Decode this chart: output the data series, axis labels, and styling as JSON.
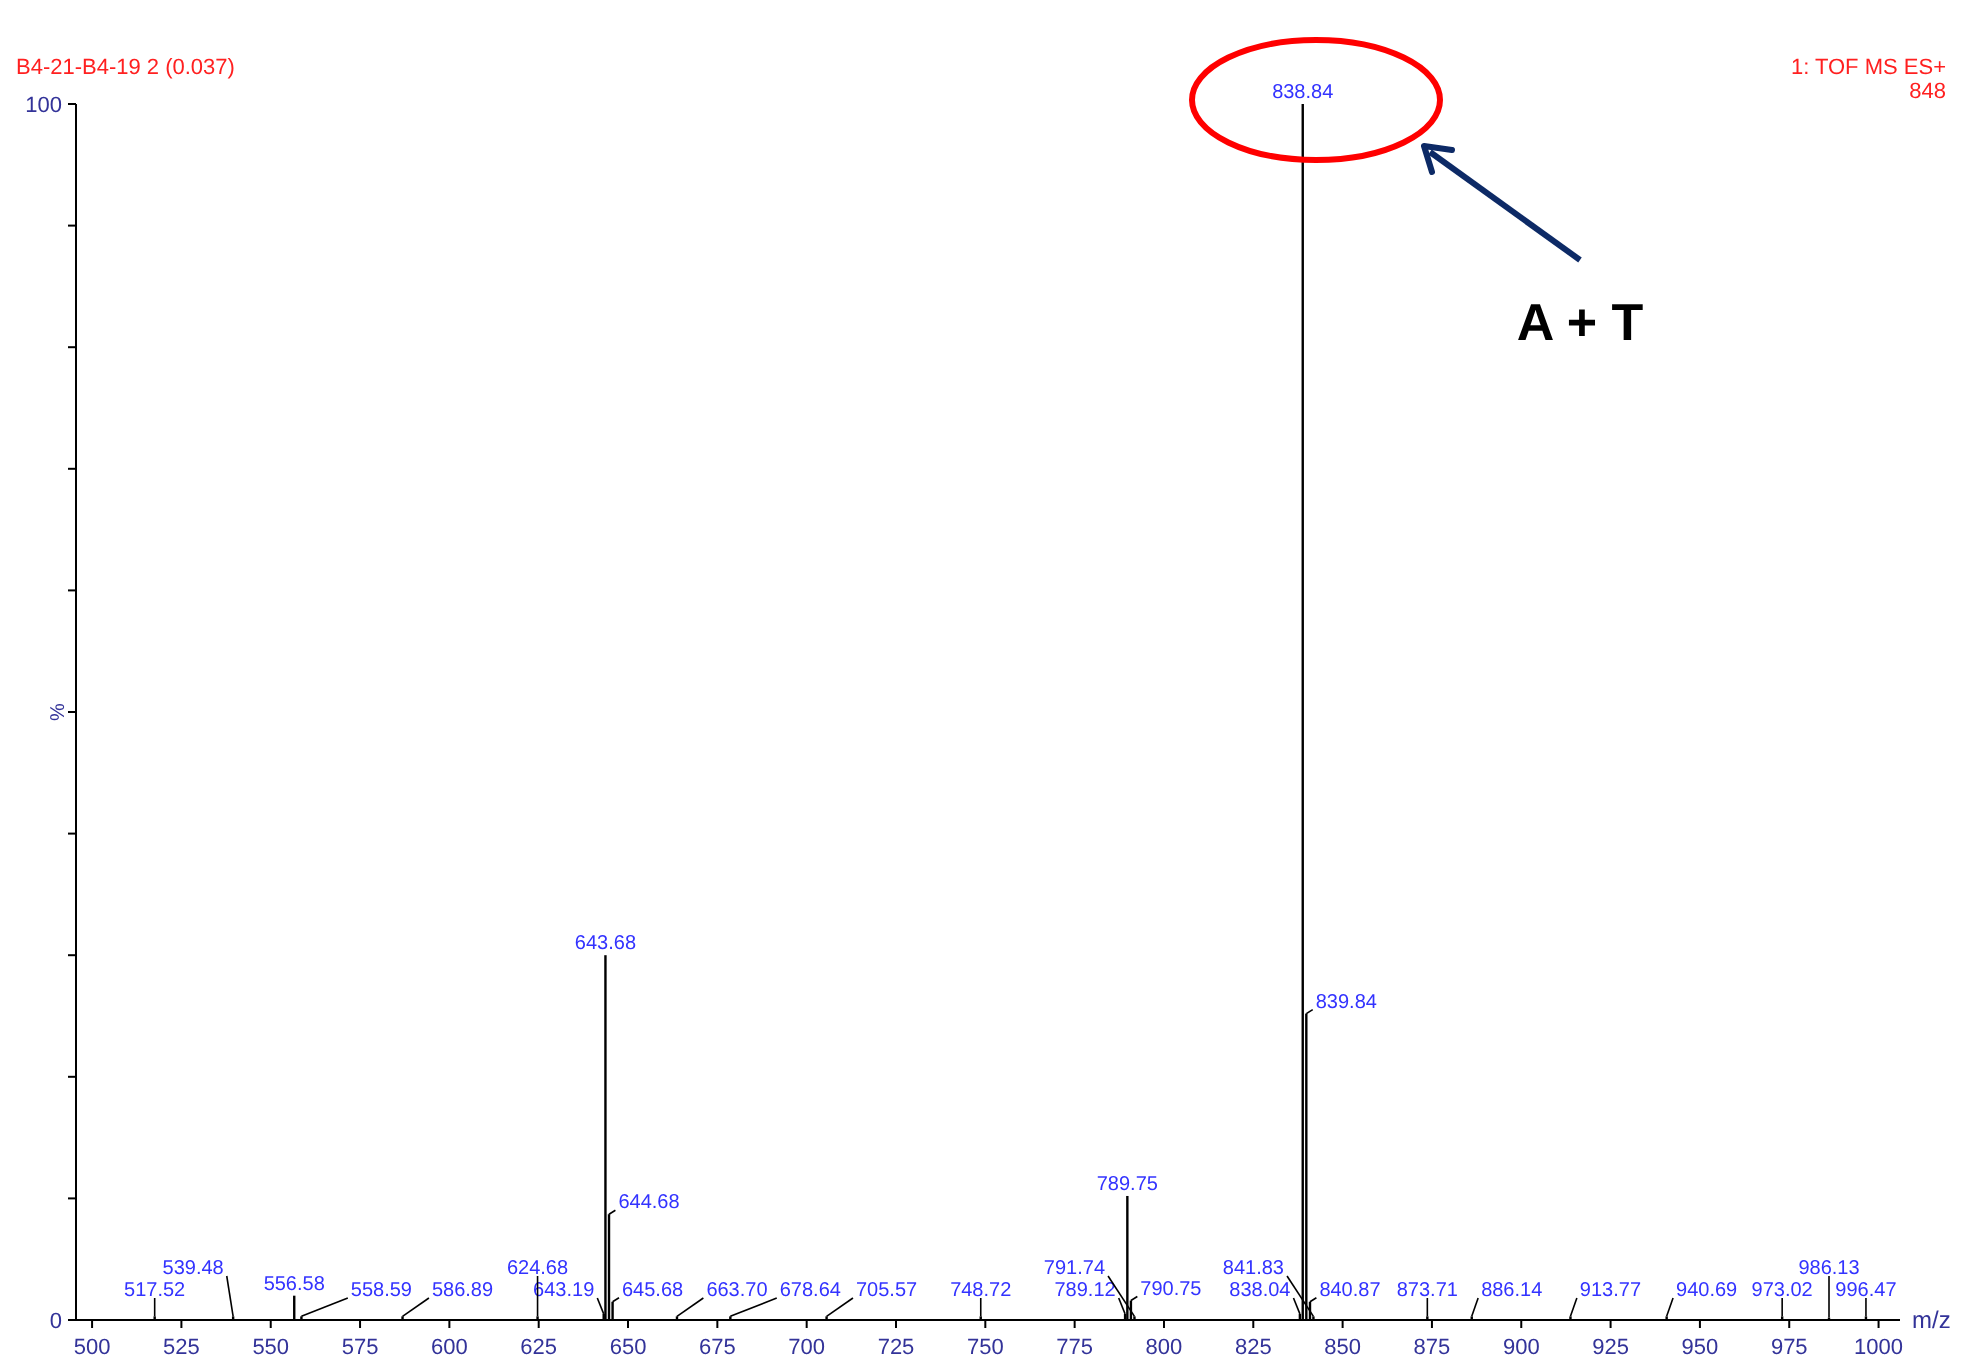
{
  "chart_data": {
    "type": "bar",
    "xlabel": "m/z",
    "ylabel": "%",
    "annotations": [
      "B4-21-B4-19 2 (0.037)",
      "1: TOF MS ES+",
      "848",
      "A + T",
      {
        "text": "517.52",
        "x": 517.52,
        "y": 0.3
      },
      {
        "text": "539.48",
        "x": 539.48,
        "y": 0.3
      },
      {
        "text": "556.58",
        "x": 556.58,
        "y": 2.0
      },
      {
        "text": "558.59",
        "x": 558.59,
        "y": 0.3
      },
      {
        "text": "586.89",
        "x": 586.89,
        "y": 0.3
      },
      {
        "text": "624.68",
        "x": 624.68,
        "y": 0.3
      },
      {
        "text": "643.19",
        "x": 643.19,
        "y": 0.5
      },
      {
        "text": "643.68",
        "x": 643.68,
        "y": 30
      },
      {
        "text": "644.68",
        "x": 644.68,
        "y": 8.7
      },
      {
        "text": "645.68",
        "x": 645.68,
        "y": 1.5
      },
      {
        "text": "663.70",
        "x": 663.7,
        "y": 0.3
      },
      {
        "text": "678.64",
        "x": 678.64,
        "y": 0.3
      },
      {
        "text": "705.57",
        "x": 705.57,
        "y": 0.3
      },
      {
        "text": "748.72",
        "x": 748.72,
        "y": 0.3
      },
      {
        "text": "789.12",
        "x": 789.12,
        "y": 0.5
      },
      {
        "text": "789.75",
        "x": 789.75,
        "y": 10.2
      },
      {
        "text": "790.75",
        "x": 790.75,
        "y": 1.6
      },
      {
        "text": "791.74",
        "x": 791.74,
        "y": 0.3
      },
      {
        "text": "838.04",
        "x": 838.04,
        "y": 0.5
      },
      {
        "text": "838.84",
        "x": 838.84,
        "y": 100
      },
      {
        "text": "839.84",
        "x": 839.84,
        "y": 25.2
      },
      {
        "text": "840.87",
        "x": 840.87,
        "y": 1.5
      },
      {
        "text": "841.83",
        "x": 841.83,
        "y": 0.3
      },
      {
        "text": "873.71",
        "x": 873.71,
        "y": 0.3
      },
      {
        "text": "886.14",
        "x": 886.14,
        "y": 0.3
      },
      {
        "text": "913.77",
        "x": 913.77,
        "y": 0.3
      },
      {
        "text": "940.69",
        "x": 940.69,
        "y": 0.3
      },
      {
        "text": "973.02",
        "x": 973.02,
        "y": 0.3
      },
      {
        "text": "986.13",
        "x": 986.13,
        "y": 0.2
      },
      {
        "text": "996.47",
        "x": 996.47,
        "y": 0.3
      }
    ],
    "x": [
      517.52,
      539.48,
      556.58,
      558.59,
      586.89,
      624.68,
      643.19,
      643.68,
      644.68,
      645.68,
      663.7,
      678.64,
      705.57,
      748.72,
      789.12,
      789.75,
      790.75,
      791.74,
      838.04,
      838.84,
      839.84,
      840.87,
      841.83,
      873.71,
      886.14,
      913.77,
      940.69,
      973.02,
      986.13,
      996.47
    ],
    "series": [
      {
        "color": "#000000",
        "values": [
          0.3,
          0.3,
          2.0,
          0.3,
          0.3,
          0.3,
          0.5,
          30,
          8.7,
          1.5,
          0.3,
          0.3,
          0.3,
          0.3,
          0.5,
          10.2,
          1.6,
          0.3,
          0.5,
          100,
          25.2,
          1.5,
          0.3,
          0.3,
          0.3,
          0.3,
          0.3,
          0.3,
          0.2,
          0.3
        ]
      }
    ],
    "xlim": [
      495.5,
      1006
    ],
    "xticks": [
      500,
      525,
      550,
      575,
      600,
      625,
      650,
      675,
      700,
      725,
      750,
      775,
      800,
      825,
      850,
      875,
      900,
      925,
      950,
      975,
      1000
    ],
    "ylim": [
      0,
      100
    ],
    "yticks": [
      0,
      {
        "value": 10,
        "label": null
      },
      {
        "value": 20,
        "label": null
      },
      {
        "value": 30,
        "label": null
      },
      {
        "value": 40,
        "label": null
      },
      {
        "value": 50,
        "label": null
      },
      {
        "value": 60,
        "label": null
      },
      {
        "value": 70,
        "label": null
      },
      {
        "value": 80,
        "label": null
      },
      {
        "value": 90,
        "label": null
      },
      100
    ],
    "grid": false
  }
}
